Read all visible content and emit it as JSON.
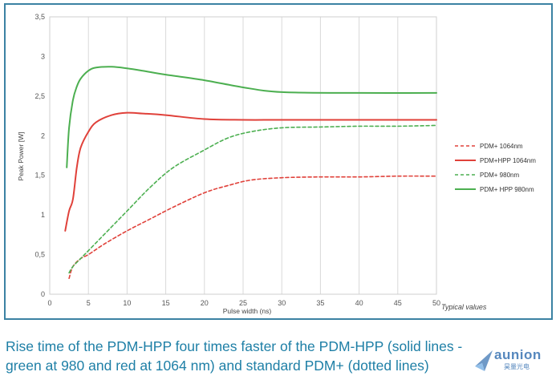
{
  "chart_data": {
    "type": "line",
    "xlabel": "Pulse width (ns)",
    "ylabel": "Peak Power [W]",
    "xlim": [
      0,
      50
    ],
    "ylim": [
      0,
      3.5
    ],
    "x_ticks": [
      "0",
      "5",
      "10",
      "15",
      "20",
      "25",
      "30",
      "35",
      "40",
      "45",
      "50"
    ],
    "y_ticks": [
      "0",
      "0,5",
      "1",
      "1,5",
      "2",
      "2,5",
      "3",
      "3,5"
    ],
    "grid": "vertical",
    "legend_position": "right",
    "annotation": "Typical values",
    "series": [
      {
        "name": "PDM+ 1064nm",
        "color": "#e0413a",
        "style": "dotted",
        "x": [
          2.5,
          3,
          4,
          5,
          7,
          10,
          13,
          16,
          20,
          23,
          26,
          30,
          35,
          40,
          45,
          50
        ],
        "y": [
          0.2,
          0.35,
          0.45,
          0.5,
          0.63,
          0.8,
          0.95,
          1.1,
          1.28,
          1.37,
          1.44,
          1.47,
          1.48,
          1.48,
          1.49,
          1.49
        ]
      },
      {
        "name": "PDM+HPP 1064nm",
        "color": "#e0413a",
        "style": "solid",
        "x": [
          2.0,
          2.5,
          3,
          3.5,
          4,
          5,
          6,
          8,
          10,
          12,
          15,
          20,
          25,
          30,
          40,
          50
        ],
        "y": [
          0.8,
          1.05,
          1.2,
          1.6,
          1.85,
          2.05,
          2.17,
          2.26,
          2.29,
          2.28,
          2.26,
          2.21,
          2.2,
          2.2,
          2.2,
          2.2
        ]
      },
      {
        "name": "PDM+ 980nm",
        "color": "#4caf50",
        "style": "dotted",
        "x": [
          2.5,
          3,
          4,
          5,
          7,
          10,
          13,
          16,
          20,
          23,
          26,
          30,
          35,
          40,
          45,
          50
        ],
        "y": [
          0.27,
          0.35,
          0.45,
          0.55,
          0.75,
          1.05,
          1.35,
          1.6,
          1.82,
          1.97,
          2.05,
          2.1,
          2.11,
          2.12,
          2.12,
          2.13
        ]
      },
      {
        "name": "PDM+ HPP 980nm",
        "color": "#4caf50",
        "style": "solid",
        "x": [
          2.2,
          2.5,
          3,
          3.5,
          4,
          5,
          6,
          8,
          10,
          12,
          15,
          20,
          25,
          30,
          40,
          50
        ],
        "y": [
          1.6,
          2.1,
          2.45,
          2.62,
          2.72,
          2.82,
          2.86,
          2.87,
          2.85,
          2.82,
          2.77,
          2.7,
          2.61,
          2.55,
          2.54,
          2.54
        ]
      }
    ]
  },
  "caption": {
    "line1": "Rise time of the PDM-HPP four times faster of the PDM-HPP (solid lines -",
    "line2": "green at 980 and red at 1064 nm) and standard PDM+ (dotted lines)"
  },
  "watermark": {
    "brand": "aunion",
    "sub": "昊量光电"
  }
}
